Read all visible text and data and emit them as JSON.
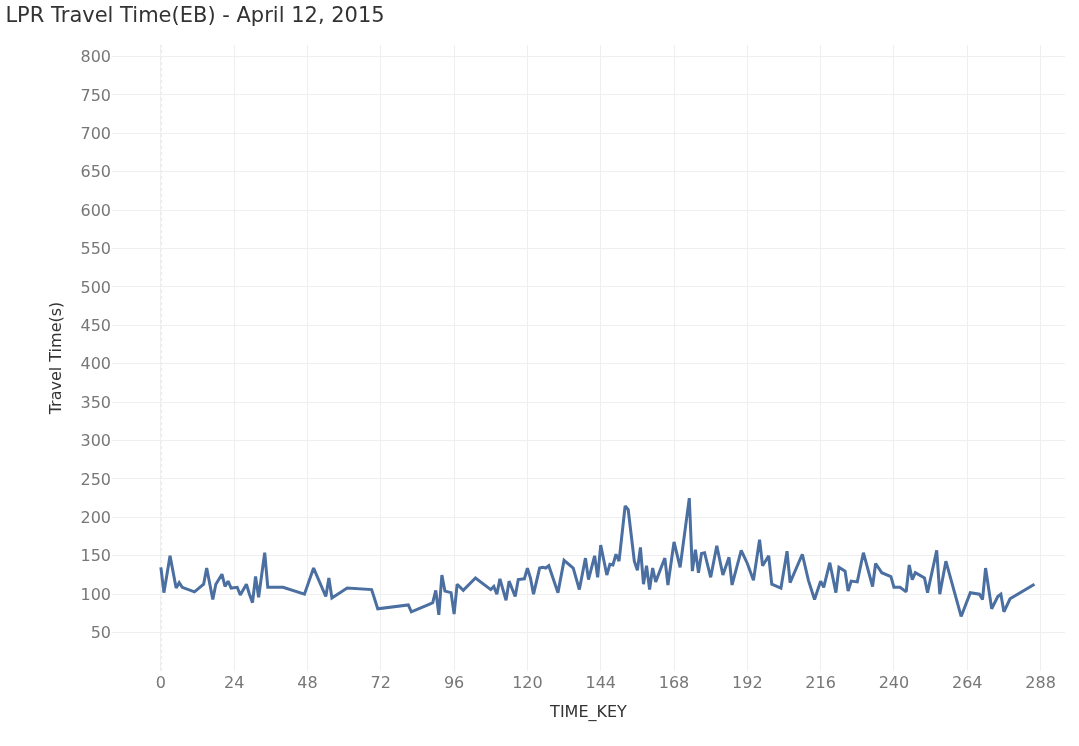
{
  "chart_data": {
    "type": "line",
    "title": "LPR Travel Time(EB) - April 12, 2015",
    "xlabel": "TIME_KEY",
    "ylabel": "Travel Time(s)",
    "x": [
      0,
      1,
      3,
      5,
      6,
      7,
      11,
      14,
      15,
      17,
      18,
      20,
      21,
      22,
      23,
      25,
      26,
      28,
      29,
      30,
      31,
      32,
      34,
      35,
      40,
      47,
      50,
      54,
      55,
      56,
      61,
      69,
      71,
      81,
      82,
      88,
      89,
      90,
      91,
      92,
      93,
      95,
      96,
      97,
      99,
      103,
      108,
      109,
      110,
      111,
      113,
      114,
      116,
      117,
      119,
      120,
      121,
      122,
      124,
      125,
      126,
      127,
      130,
      132,
      135,
      137,
      139,
      140,
      142,
      143,
      144,
      146,
      147,
      148,
      149,
      150,
      152,
      153,
      155,
      156,
      157,
      158,
      159,
      160,
      161,
      162,
      164,
      165,
      166,
      168,
      170,
      173,
      174,
      175,
      176,
      177,
      178,
      180,
      182,
      184,
      186,
      187,
      190,
      192,
      194,
      196,
      197,
      199,
      200,
      203,
      205,
      206,
      210,
      212,
      214,
      216,
      217,
      219,
      221,
      222,
      224,
      225,
      226,
      228,
      230,
      233,
      234,
      236,
      239,
      240,
      242,
      244,
      245,
      246,
      247,
      250,
      251,
      254,
      255,
      257,
      262,
      265,
      268,
      269,
      270,
      272,
      274,
      275,
      276,
      278,
      286
    ],
    "series": [
      {
        "color": "#4a6fa0",
        "values": [
          135,
          102,
          150,
          108,
          115,
          109,
          103,
          113,
          134,
          93,
          113,
          126,
          110,
          117,
          108,
          109,
          99,
          113,
          100,
          89,
          123,
          96,
          154,
          109,
          109,
          100,
          134,
          97,
          121,
          95,
          108,
          106,
          81,
          86,
          77,
          87,
          89,
          105,
          73,
          125,
          104,
          102,
          74,
          113,
          105,
          121,
          106,
          110,
          100,
          120,
          92,
          117,
          97,
          119,
          120,
          134,
          121,
          100,
          134,
          135,
          134,
          137,
          102,
          144,
          134,
          106,
          147,
          119,
          150,
          122,
          164,
          125,
          139,
          138,
          152,
          143,
          215,
          210,
          143,
          131,
          161,
          113,
          137,
          106,
          134,
          116,
          137,
          147,
          112,
          168,
          135,
          225,
          130,
          158,
          128,
          153,
          154,
          122,
          163,
          125,
          148,
          112,
          157,
          140,
          118,
          171,
          137,
          150,
          113,
          108,
          156,
          115,
          152,
          118,
          93,
          117,
          109,
          141,
          102,
          135,
          130,
          104,
          117,
          116,
          154,
          110,
          140,
          128,
          123,
          109,
          109,
          103,
          138,
          119,
          128,
          121,
          102,
          157,
          100,
          143,
          71,
          102,
          100,
          93,
          134,
          81,
          97,
          100,
          77,
          94,
          113
        ]
      }
    ],
    "xlim": [
      -16,
      296
    ],
    "xticks": [
      0,
      24,
      48,
      72,
      96,
      120,
      144,
      168,
      192,
      216,
      240,
      264,
      288
    ],
    "ylim": [
      0,
      815
    ],
    "yticks": [
      50,
      100,
      150,
      200,
      250,
      300,
      350,
      400,
      450,
      500,
      550,
      600,
      650,
      700,
      750,
      800
    ],
    "grid": true,
    "marker": "none",
    "line_style": "solid",
    "ref_lines": [
      {
        "axis": "x",
        "value": 0,
        "color": "#c8c8c8",
        "line_style": "dotted"
      }
    ]
  }
}
